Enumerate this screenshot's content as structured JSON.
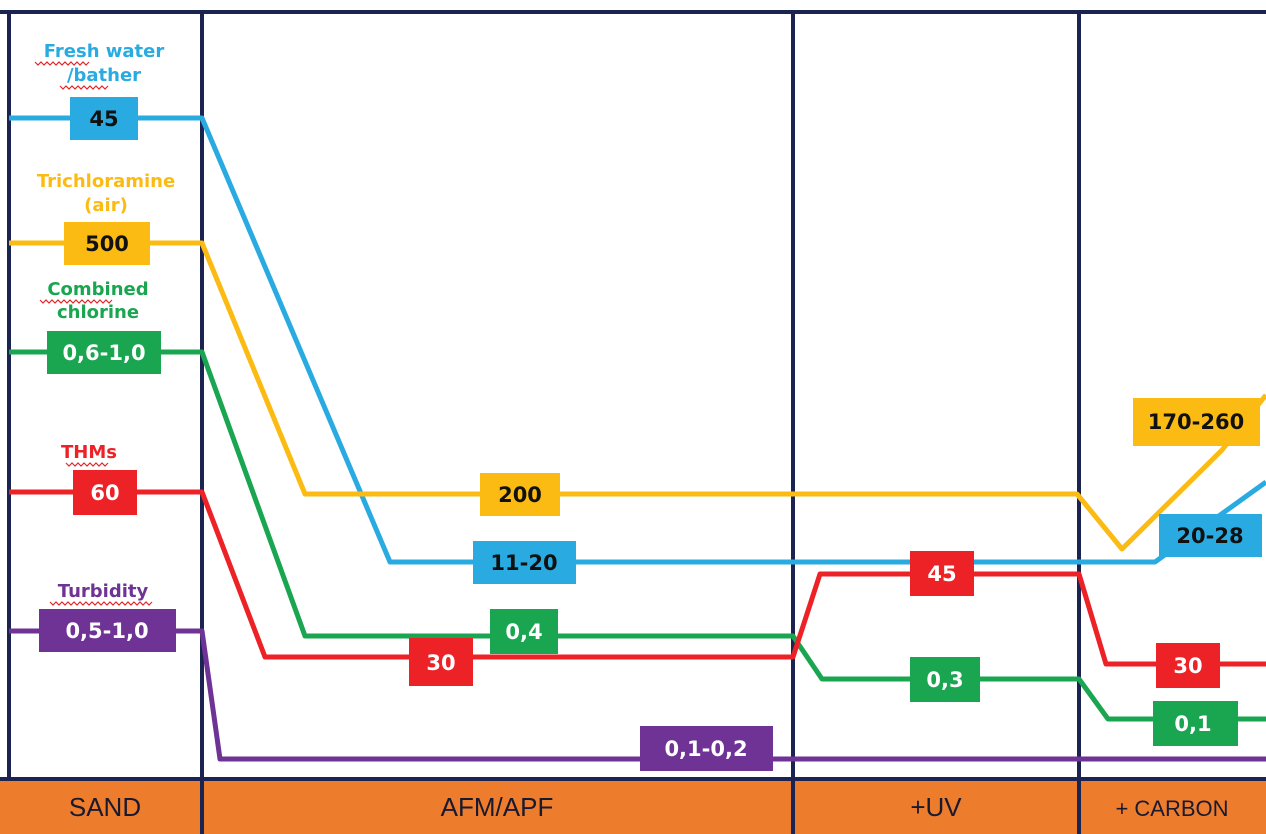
{
  "colors": {
    "fresh_water": "#29abe2",
    "trichloramine": "#fbbb12",
    "combined_chlorine": "#1aa650",
    "thms": "#ec2227",
    "turbidity": "#6f3295",
    "border": "#1b2450",
    "stage_bar": "#ee7c2d"
  },
  "stages": [
    "SAND",
    "AFM/APF",
    "+UV",
    "+ CARBON"
  ],
  "parameters": {
    "fresh_water": {
      "name_line1": "Fresh water",
      "name_line2": "/bather",
      "sand": "45",
      "afm": "11-20",
      "carbon": "20-28"
    },
    "trichloramine": {
      "name_line1": "Trichloramine",
      "name_line2": "(air)",
      "sand": "500",
      "afm": "200",
      "carbon": "170-260"
    },
    "combined_chlorine": {
      "name_line1": "Combined",
      "name_line2": "chlorine",
      "sand": "0,6-1,0",
      "afm": "0,4",
      "uv": "0,3",
      "carbon": "0,1"
    },
    "thms": {
      "name": "THMs",
      "sand": "60",
      "afm": "30",
      "uv": "45",
      "carbon": "30"
    },
    "turbidity": {
      "name": "Turbidity",
      "sand": "0,5-1,0",
      "afm": "0,1-0,2"
    }
  }
}
